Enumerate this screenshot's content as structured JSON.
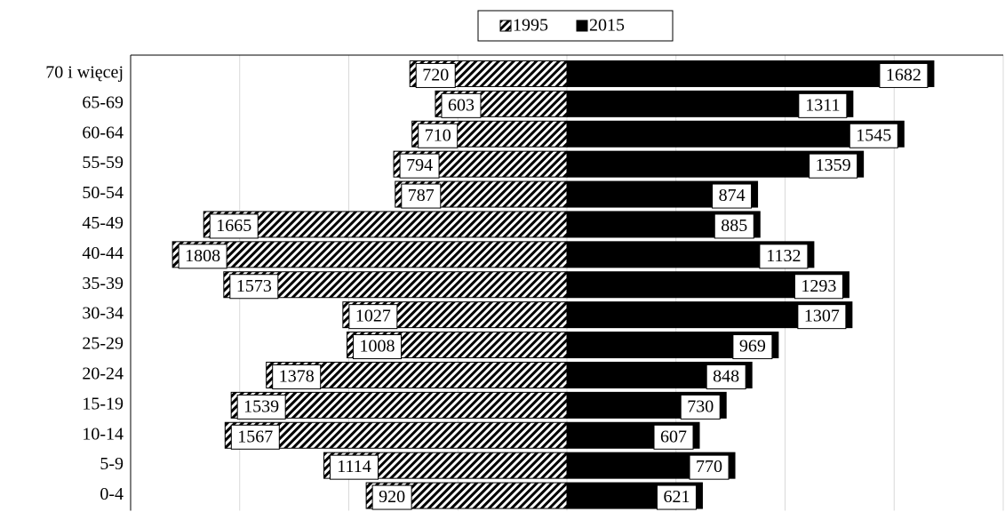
{
  "chart_data": {
    "type": "pyramid",
    "categories": [
      "70 i więcej",
      "65-69",
      "60-64",
      "55-59",
      "50-54",
      "45-49",
      "40-44",
      "35-39",
      "30-34",
      "25-29",
      "20-24",
      "15-19",
      "10-14",
      "5-9",
      "0-4"
    ],
    "series": [
      {
        "name": "1995",
        "color": "#000000",
        "side": "left",
        "values": [
          720,
          603,
          710,
          794,
          787,
          1665,
          1808,
          1573,
          1027,
          1008,
          1378,
          1539,
          1567,
          1114,
          920
        ]
      },
      {
        "name": "2015",
        "color": "#000000",
        "side": "right",
        "values": [
          1682,
          1311,
          1545,
          1359,
          874,
          885,
          1132,
          1293,
          1307,
          969,
          848,
          730,
          607,
          770,
          621
        ]
      }
    ],
    "xlim": [
      -2000,
      2000
    ],
    "xticks": [
      -2000,
      -1500,
      -1000,
      -500,
      0,
      500,
      1000,
      1500,
      2000
    ],
    "grid": true,
    "legend": "top"
  }
}
